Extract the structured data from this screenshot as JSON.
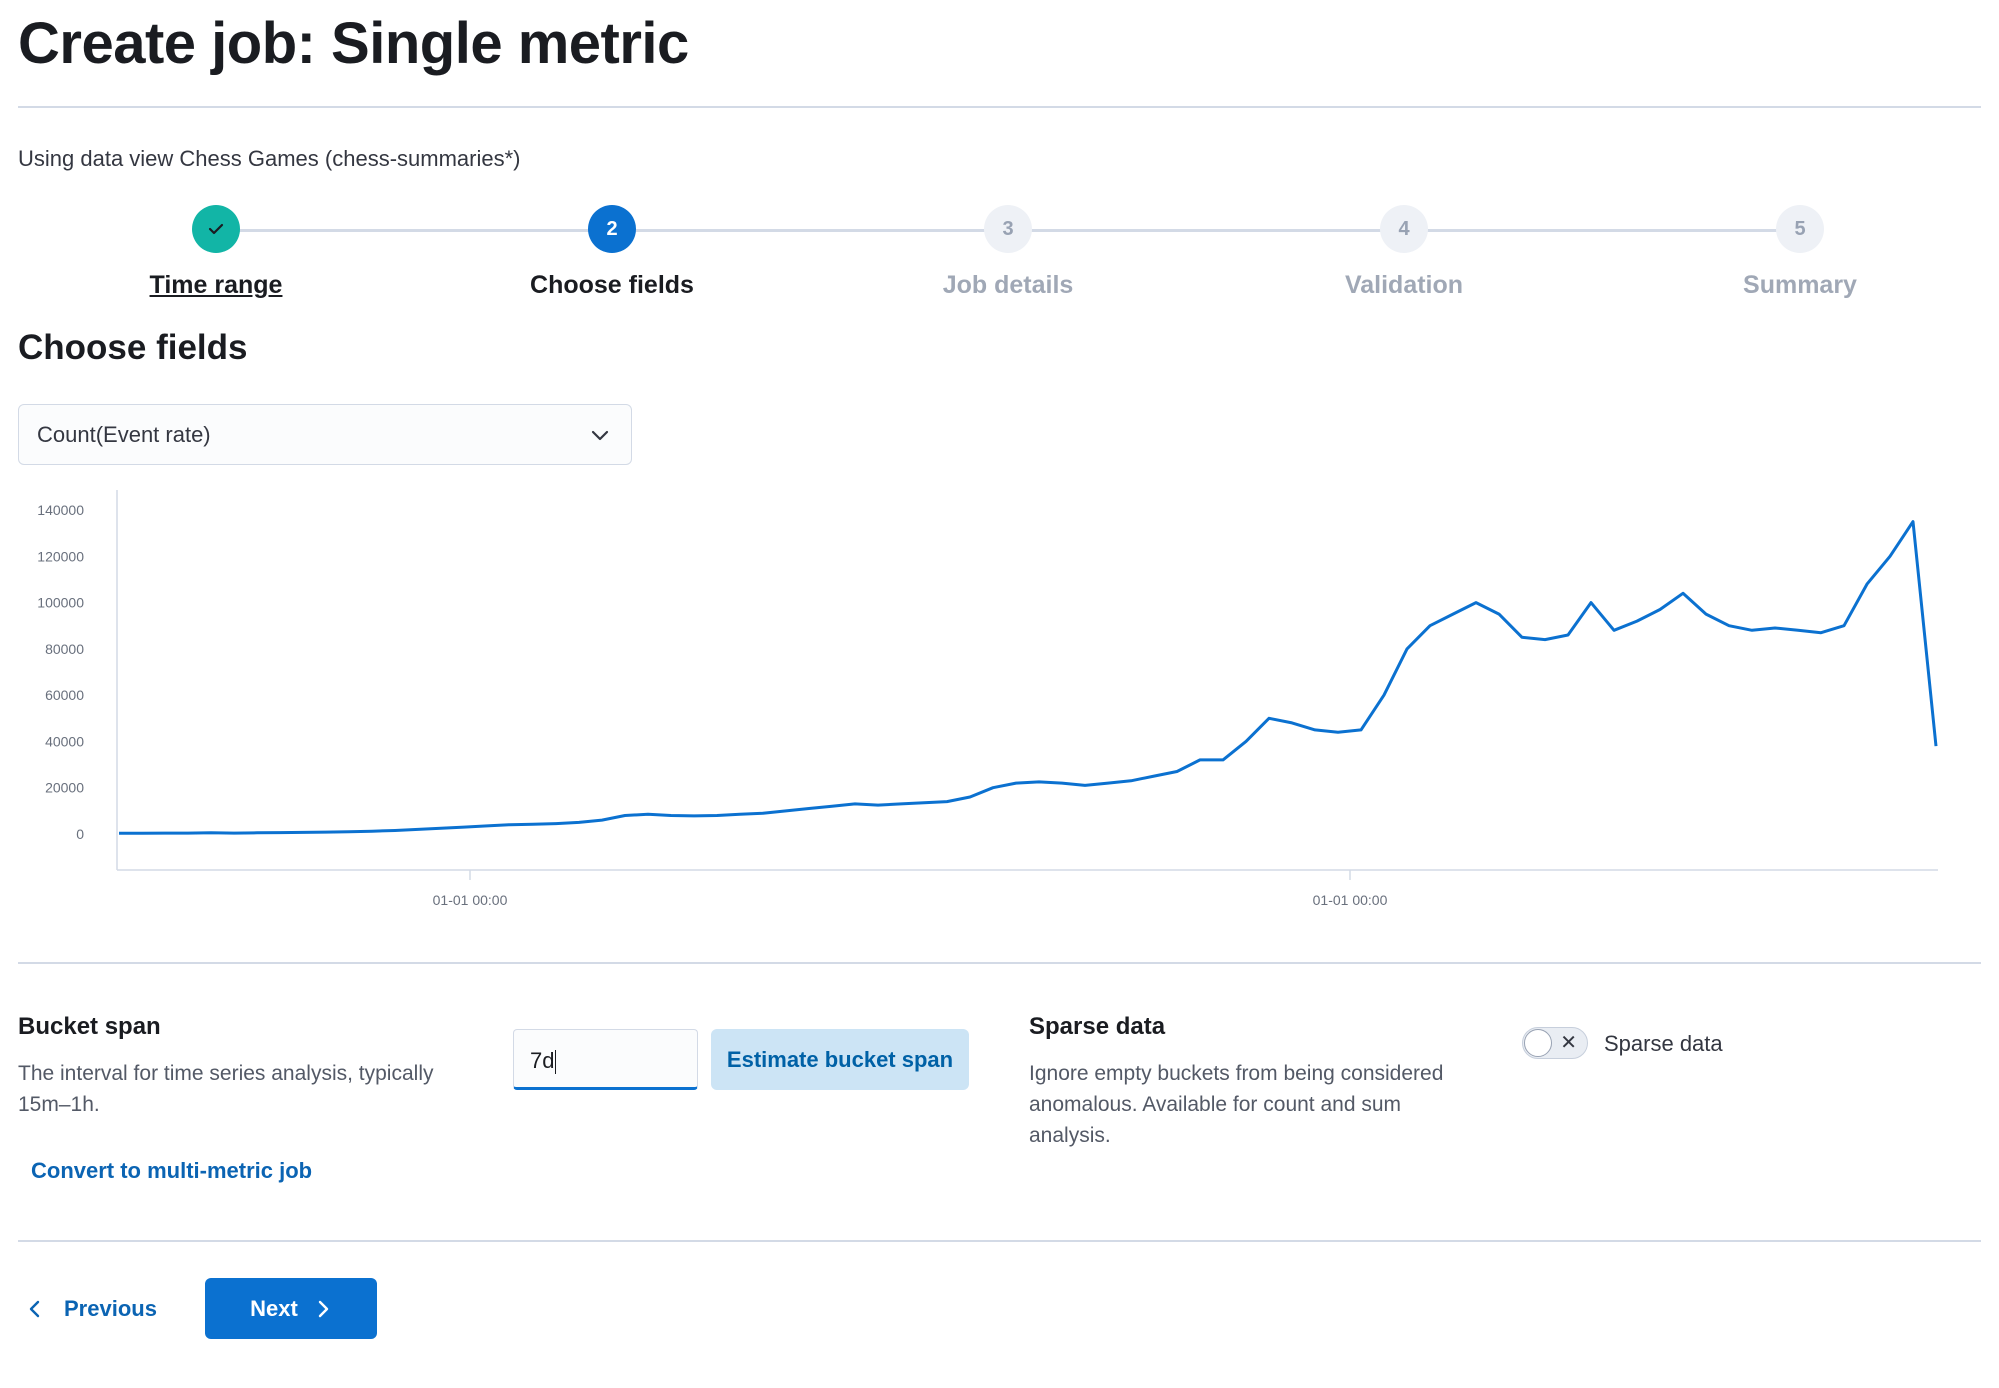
{
  "page": {
    "title": "Create job: Single metric",
    "data_view_text": "Using data view Chess Games (chess-summaries*)"
  },
  "stepper": {
    "steps": [
      {
        "number": "",
        "label": "Time range",
        "status": "complete"
      },
      {
        "number": "2",
        "label": "Choose fields",
        "status": "current"
      },
      {
        "number": "3",
        "label": "Job details",
        "status": "incomplete"
      },
      {
        "number": "4",
        "label": "Validation",
        "status": "incomplete"
      },
      {
        "number": "5",
        "label": "Summary",
        "status": "incomplete"
      }
    ]
  },
  "section": {
    "title": "Choose fields"
  },
  "field_select": {
    "value": "Count(Event rate)"
  },
  "chart_data": {
    "type": "line",
    "y_ticks": [
      "0",
      "20000",
      "40000",
      "60000",
      "80000",
      "100000",
      "120000",
      "140000"
    ],
    "x_ticks": [
      "01-01 00:00",
      "01-01 00:00"
    ],
    "ylim": [
      0,
      140000
    ],
    "grid": false,
    "series": [
      {
        "values": [
          300,
          300,
          400,
          400,
          500,
          400,
          500,
          600,
          700,
          800,
          1000,
          1200,
          1500,
          2000,
          2500,
          3000,
          3500,
          4000,
          4200,
          4500,
          5000,
          6000,
          8000,
          8500,
          8000,
          7800,
          8000,
          8500,
          9000,
          10000,
          11000,
          12000,
          13000,
          12500,
          13000,
          13500,
          14000,
          16000,
          20000,
          22000,
          22500,
          22000,
          21000,
          22000,
          23000,
          25000,
          27000,
          32000,
          32000,
          40000,
          50000,
          48000,
          45000,
          44000,
          45000,
          60000,
          80000,
          90000,
          95000,
          100000,
          95000,
          85000,
          84000,
          86000,
          100000,
          88000,
          92000,
          97000,
          104000,
          95000,
          90000,
          88000,
          89000,
          88000,
          87000,
          90000,
          108000,
          120000,
          135000,
          38000
        ],
        "color": "#0b71d0"
      }
    ]
  },
  "bucket_span": {
    "title": "Bucket span",
    "description_line1": "The interval for time series analysis, typically",
    "description_line2": "15m–1h.",
    "value": "7d",
    "estimate_button": "Estimate bucket span",
    "convert_link": "Convert to multi-metric job"
  },
  "sparse_data": {
    "title": "Sparse data",
    "description_line1": "Ignore empty buckets from being considered",
    "description_line2": "anomalous. Available for count and sum",
    "description_line3": "analysis.",
    "toggle_label": "Sparse data",
    "toggle_on": false
  },
  "footer": {
    "previous_label": "Previous",
    "next_label": "Next"
  }
}
